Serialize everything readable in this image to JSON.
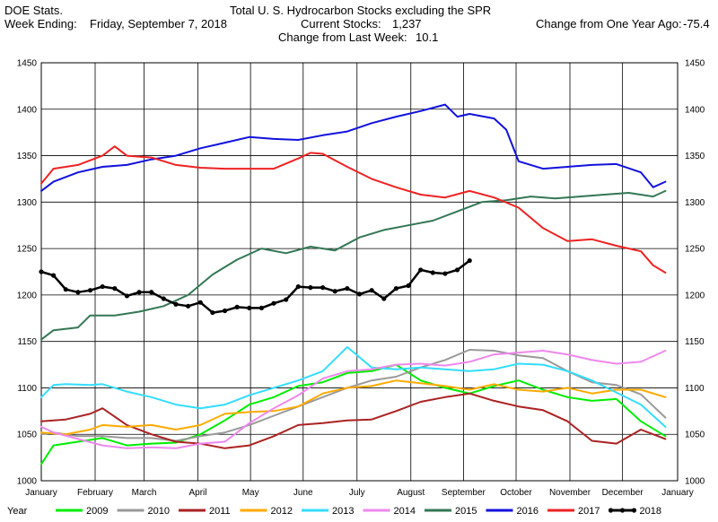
{
  "header": {
    "line1_left": "DOE Stats.",
    "line2_left_label": "Week Ending:",
    "line2_left_value": "Friday, September 7, 2018",
    "title": "Total U. S. Hydrocarbon Stocks excluding the SPR",
    "current_stocks_label": "Current Stocks:",
    "current_stocks_value": "1,237",
    "change_week_label": "Change from Last Week:",
    "change_week_value": "10.1",
    "change_year_label": "Change from One Year Ago:",
    "change_year_value": "-75.4"
  },
  "chart_data": {
    "type": "line",
    "title": "Total U. S. Hydrocarbon Stocks excluding the SPR",
    "xlabel": "",
    "ylabel": "",
    "ylim": [
      1000,
      1450
    ],
    "xlim": [
      1,
      53
    ],
    "y_ticks": [
      1000,
      1050,
      1100,
      1150,
      1200,
      1250,
      1300,
      1350,
      1400,
      1450
    ],
    "x_tick_labels": [
      "January",
      "February",
      "March",
      "April",
      "May",
      "June",
      "July",
      "August",
      "September",
      "October",
      "November",
      "December",
      "January"
    ],
    "x_tick_weeks": [
      1,
      5.4,
      9.4,
      13.8,
      18.1,
      22.4,
      26.8,
      31.2,
      35.5,
      39.8,
      44.2,
      48.5,
      53
    ],
    "grid": true,
    "legend_position": "bottom",
    "legend_title": "Year",
    "series": [
      {
        "name": "2009",
        "color": "#00ee00",
        "width": 2,
        "markers": false,
        "x": [
          1,
          2,
          4,
          6,
          8,
          10,
          12,
          14,
          16,
          18,
          20,
          22,
          24,
          26,
          28,
          30,
          32,
          34,
          36,
          38,
          40,
          42,
          44,
          46,
          48,
          50,
          52
        ],
        "values": [
          1018,
          1038,
          1042,
          1046,
          1038,
          1040,
          1041,
          1050,
          1065,
          1082,
          1090,
          1102,
          1106,
          1116,
          1118,
          1125,
          1108,
          1100,
          1094,
          1102,
          1108,
          1098,
          1090,
          1086,
          1088,
          1064,
          1048
        ]
      },
      {
        "name": "2010",
        "color": "#999999",
        "width": 2,
        "markers": false,
        "x": [
          1,
          2,
          4,
          6,
          8,
          10,
          12,
          14,
          16,
          18,
          20,
          22,
          24,
          26,
          28,
          30,
          32,
          34,
          36,
          38,
          40,
          42,
          44,
          46,
          48,
          50,
          52
        ],
        "values": [
          1050,
          1052,
          1048,
          1048,
          1046,
          1046,
          1043,
          1048,
          1052,
          1060,
          1070,
          1080,
          1090,
          1100,
          1108,
          1112,
          1122,
          1130,
          1141,
          1140,
          1135,
          1132,
          1118,
          1106,
          1103,
          1093,
          1068
        ]
      },
      {
        "name": "2011",
        "color": "#aa2222",
        "width": 2,
        "markers": false,
        "x": [
          1,
          3,
          5,
          6,
          8,
          10,
          12,
          14,
          16,
          18,
          20,
          22,
          24,
          26,
          28,
          30,
          32,
          34,
          36,
          38,
          40,
          42,
          44,
          46,
          48,
          50,
          52
        ],
        "values": [
          1064,
          1066,
          1072,
          1078,
          1060,
          1050,
          1042,
          1040,
          1035,
          1038,
          1048,
          1060,
          1062,
          1065,
          1066,
          1075,
          1085,
          1090,
          1094,
          1086,
          1080,
          1076,
          1064,
          1043,
          1040,
          1055,
          1045
        ]
      },
      {
        "name": "2012",
        "color": "#ffaa00",
        "width": 2,
        "markers": false,
        "x": [
          1,
          3,
          5,
          6,
          8,
          10,
          12,
          14,
          16,
          18,
          20,
          22,
          24,
          26,
          28,
          30,
          32,
          34,
          36,
          38,
          40,
          42,
          44,
          46,
          48,
          50,
          52
        ],
        "values": [
          1052,
          1050,
          1055,
          1060,
          1058,
          1060,
          1055,
          1060,
          1072,
          1074,
          1075,
          1080,
          1094,
          1100,
          1102,
          1108,
          1105,
          1102,
          1098,
          1104,
          1098,
          1096,
          1100,
          1094,
          1098,
          1098,
          1090
        ]
      },
      {
        "name": "2013",
        "color": "#33ddff",
        "width": 2,
        "markers": false,
        "x": [
          1,
          2,
          3,
          5,
          6,
          8,
          10,
          12,
          14,
          16,
          18,
          20,
          22,
          24,
          26,
          28,
          30,
          32,
          34,
          36,
          38,
          40,
          42,
          44,
          46,
          48,
          50,
          52
        ],
        "values": [
          1090,
          1103,
          1104,
          1103,
          1104,
          1096,
          1090,
          1082,
          1078,
          1082,
          1092,
          1100,
          1108,
          1118,
          1144,
          1122,
          1120,
          1122,
          1120,
          1118,
          1120,
          1126,
          1125,
          1118,
          1108,
          1095,
          1082,
          1058
        ]
      },
      {
        "name": "2014",
        "color": "#ee88ee",
        "width": 2,
        "markers": false,
        "x": [
          1,
          2,
          4,
          6,
          8,
          10,
          12,
          14,
          16,
          18,
          20,
          22,
          24,
          26,
          28,
          30,
          32,
          34,
          36,
          38,
          40,
          42,
          44,
          46,
          48,
          50,
          52
        ],
        "values": [
          1058,
          1052,
          1045,
          1038,
          1035,
          1036,
          1035,
          1040,
          1042,
          1062,
          1078,
          1092,
          1110,
          1118,
          1120,
          1125,
          1126,
          1124,
          1128,
          1136,
          1138,
          1140,
          1136,
          1130,
          1126,
          1128,
          1140
        ]
      },
      {
        "name": "2015",
        "color": "#337755",
        "width": 2,
        "markers": false,
        "x": [
          1,
          2,
          4,
          5,
          7,
          9,
          11,
          13,
          15,
          17,
          19,
          21,
          23,
          25,
          27,
          29,
          31,
          33,
          35,
          37,
          39,
          41,
          43,
          45,
          47,
          49,
          51,
          52
        ],
        "values": [
          1152,
          1162,
          1165,
          1178,
          1178,
          1182,
          1188,
          1200,
          1222,
          1238,
          1250,
          1245,
          1252,
          1248,
          1262,
          1270,
          1275,
          1280,
          1290,
          1300,
          1302,
          1306,
          1304,
          1306,
          1308,
          1310,
          1306,
          1312
        ]
      },
      {
        "name": "2016",
        "color": "#1111dd",
        "width": 2,
        "markers": false,
        "x": [
          1,
          2,
          4,
          6,
          8,
          10,
          12,
          14,
          16,
          18,
          20,
          22,
          24,
          26,
          28,
          30,
          32,
          34,
          35,
          36,
          38,
          39,
          40,
          42,
          44,
          46,
          48,
          50,
          51,
          52
        ],
        "values": [
          1312,
          1322,
          1332,
          1338,
          1340,
          1346,
          1350,
          1358,
          1364,
          1370,
          1368,
          1367,
          1372,
          1376,
          1385,
          1392,
          1398,
          1405,
          1392,
          1395,
          1390,
          1378,
          1344,
          1336,
          1338,
          1340,
          1341,
          1332,
          1316,
          1322
        ]
      },
      {
        "name": "2017",
        "color": "#ee2222",
        "width": 2,
        "markers": false,
        "x": [
          1,
          2,
          4,
          6,
          7,
          8,
          10,
          12,
          14,
          16,
          18,
          20,
          22,
          23,
          24,
          26,
          28,
          30,
          32,
          34,
          36,
          38,
          40,
          42,
          44,
          46,
          48,
          50,
          51,
          52
        ],
        "values": [
          1320,
          1336,
          1340,
          1350,
          1360,
          1350,
          1348,
          1340,
          1337,
          1336,
          1336,
          1336,
          1347,
          1353,
          1352,
          1338,
          1325,
          1316,
          1308,
          1305,
          1312,
          1305,
          1294,
          1272,
          1258,
          1260,
          1253,
          1247,
          1232,
          1224
        ]
      },
      {
        "name": "2018",
        "color": "#000000",
        "width": 2.5,
        "markers": true,
        "x": [
          1,
          2,
          3,
          4,
          5,
          6,
          7,
          8,
          9,
          10,
          11,
          12,
          13,
          14,
          15,
          16,
          17,
          18,
          19,
          20,
          21,
          22,
          23,
          24,
          25,
          26,
          27,
          28,
          29,
          30,
          31,
          32,
          33,
          34,
          35,
          36
        ],
        "values": [
          1225,
          1221,
          1206,
          1203,
          1205,
          1209,
          1207,
          1199,
          1203,
          1203,
          1196,
          1190,
          1188,
          1192,
          1181,
          1183,
          1187,
          1186,
          1186,
          1191,
          1195,
          1209,
          1208,
          1208,
          1204,
          1207,
          1201,
          1205,
          1196,
          1207,
          1210,
          1227,
          1224,
          1223,
          1227,
          1237
        ]
      }
    ]
  }
}
